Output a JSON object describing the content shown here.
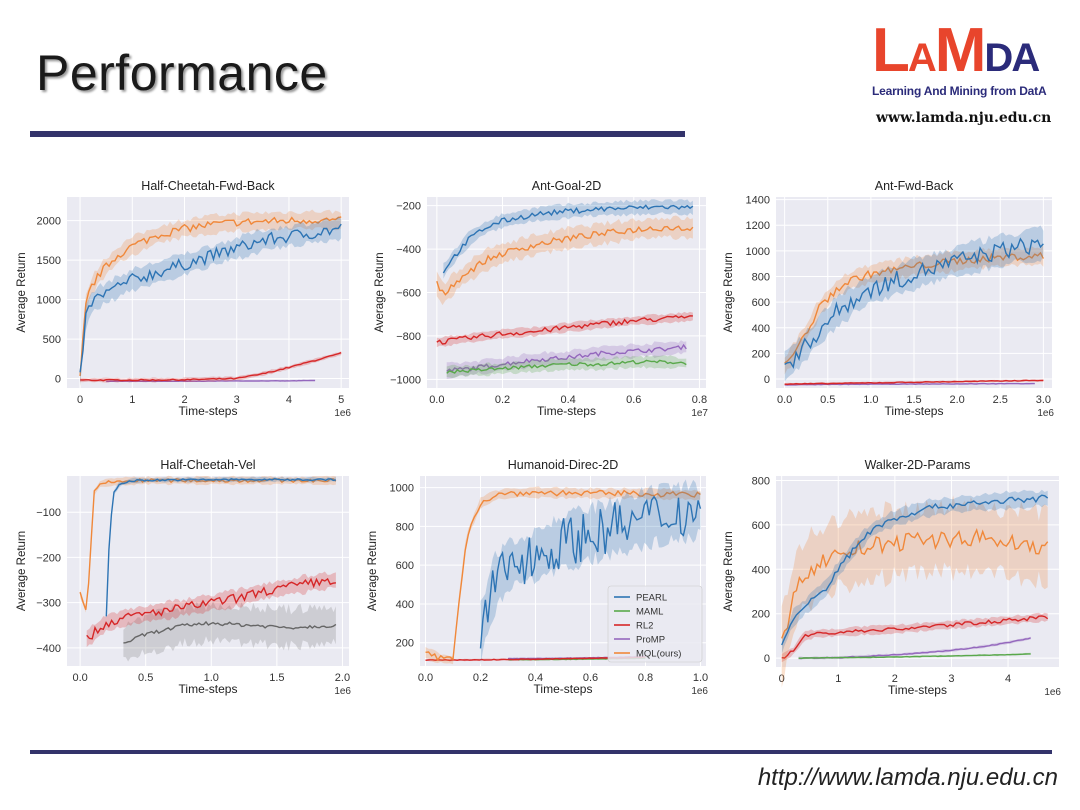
{
  "slide": {
    "title": "Performance",
    "logo_letters": [
      "L",
      "A",
      "M",
      "D",
      "A"
    ],
    "logo_subtitle": "Learning And Mining from DatA",
    "logo_url": "www.lamda.nju.edu.cn",
    "footer_url": "http://www.lamda.nju.edu.cn"
  },
  "colors": {
    "PEARL": "#2d74b4",
    "MAML": "#59a84b",
    "RL2": "#d62728",
    "ProMP": "#9467bd",
    "MQL(ours)": "#f0883a",
    "panel_bg": "#eaeaf2",
    "rule": "#33336b"
  },
  "chart_data": [
    {
      "type": "line",
      "title": "Half-Cheetah-Fwd-Back",
      "xlabel": "Time-steps",
      "ylabel": "Average Return",
      "x_multiplier": "1e6",
      "xlim": [
        -0.25,
        5.15
      ],
      "ylim": [
        -120,
        2300
      ],
      "xticks": [
        0,
        1,
        2,
        3,
        4,
        5
      ],
      "xtick_labels": [
        "0",
        "1",
        "2",
        "3",
        "4",
        "5"
      ],
      "yticks": [
        0,
        500,
        1000,
        1500,
        2000
      ],
      "ytick_labels": [
        "0",
        "500",
        "1000",
        "1500",
        "2000"
      ],
      "series": [
        {
          "name": "MQL(ours)",
          "x": [
            0,
            0.1,
            0.2,
            0.4,
            0.7,
            1.0,
            1.5,
            2.0,
            2.5,
            3.0,
            3.5,
            4.0,
            4.5,
            5.0
          ],
          "values": [
            0,
            900,
            1150,
            1350,
            1550,
            1680,
            1820,
            1900,
            1950,
            1980,
            1990,
            2000,
            2010,
            2000
          ],
          "band": 110,
          "noise": 50
        },
        {
          "name": "PEARL",
          "x": [
            0,
            0.1,
            0.2,
            0.4,
            0.7,
            1.0,
            1.5,
            2.0,
            2.5,
            3.0,
            3.5,
            4.0,
            4.5,
            5.0
          ],
          "values": [
            0,
            750,
            950,
            1050,
            1150,
            1250,
            1350,
            1450,
            1550,
            1650,
            1750,
            1800,
            1850,
            1900
          ],
          "band": 130,
          "noise": 80
        },
        {
          "name": "RL2",
          "x": [
            0,
            1,
            2,
            3,
            3.5,
            4,
            4.5,
            5
          ],
          "values": [
            -20,
            -20,
            -15,
            0,
            60,
            140,
            230,
            320
          ],
          "band": 25,
          "noise": 8
        },
        {
          "name": "ProMP",
          "x": [
            0.5,
            1,
            2,
            3,
            4,
            4.5
          ],
          "values": [
            -35,
            -35,
            -35,
            -30,
            -30,
            -25
          ],
          "band": 5,
          "noise": 2
        }
      ]
    },
    {
      "type": "line",
      "title": "Ant-Goal-2D",
      "xlabel": "Time-steps",
      "ylabel": "Average Return",
      "x_multiplier": "1e7",
      "xlim": [
        -0.03,
        0.82
      ],
      "ylim": [
        -1040,
        -160
      ],
      "xticks": [
        0,
        0.2,
        0.4,
        0.6,
        0.8
      ],
      "xtick_labels": [
        "0.0",
        "0.2",
        "0.4",
        "0.6",
        "0.8"
      ],
      "yticks": [
        -1000,
        -800,
        -600,
        -400,
        -200
      ],
      "ytick_labels": [
        "−1000",
        "−800",
        "−600",
        "−400",
        "−200"
      ],
      "series": [
        {
          "name": "PEARL",
          "x": [
            0.02,
            0.05,
            0.1,
            0.15,
            0.2,
            0.3,
            0.4,
            0.5,
            0.6,
            0.7,
            0.78
          ],
          "values": [
            -500,
            -440,
            -350,
            -300,
            -270,
            -240,
            -225,
            -215,
            -210,
            -205,
            -210
          ],
          "band": 30,
          "noise": 12
        },
        {
          "name": "MQL(ours)",
          "x": [
            0,
            0.02,
            0.05,
            0.1,
            0.15,
            0.2,
            0.3,
            0.4,
            0.5,
            0.6,
            0.7,
            0.78
          ],
          "values": [
            -560,
            -610,
            -560,
            -500,
            -450,
            -420,
            -380,
            -350,
            -330,
            -310,
            -300,
            -305
          ],
          "band": 45,
          "noise": 15
        },
        {
          "name": "RL2",
          "x": [
            0,
            0.1,
            0.2,
            0.3,
            0.4,
            0.5,
            0.6,
            0.7,
            0.78
          ],
          "values": [
            -830,
            -810,
            -790,
            -780,
            -760,
            -745,
            -730,
            -720,
            -710
          ],
          "band": 20,
          "noise": 12
        },
        {
          "name": "ProMP",
          "x": [
            0.03,
            0.1,
            0.2,
            0.3,
            0.4,
            0.5,
            0.6,
            0.7,
            0.76
          ],
          "values": [
            -960,
            -950,
            -930,
            -910,
            -900,
            -880,
            -870,
            -860,
            -850
          ],
          "band": 30,
          "noise": 10
        },
        {
          "name": "MAML",
          "x": [
            0.03,
            0.1,
            0.2,
            0.3,
            0.4,
            0.5,
            0.6,
            0.7,
            0.76
          ],
          "values": [
            -965,
            -960,
            -950,
            -940,
            -930,
            -930,
            -920,
            -920,
            -925
          ],
          "band": 25,
          "noise": 8
        }
      ]
    },
    {
      "type": "line",
      "title": "Ant-Fwd-Back",
      "xlabel": "Time-steps",
      "ylabel": "Average Return",
      "x_multiplier": "1e6",
      "xlim": [
        -0.1,
        3.1
      ],
      "ylim": [
        -70,
        1420
      ],
      "xticks": [
        0,
        0.5,
        1.0,
        1.5,
        2.0,
        2.5,
        3.0
      ],
      "xtick_labels": [
        "0.0",
        "0.5",
        "1.0",
        "1.5",
        "2.0",
        "2.5",
        "3.0"
      ],
      "yticks": [
        0,
        200,
        400,
        600,
        800,
        1000,
        1200,
        1400
      ],
      "ytick_labels": [
        "0",
        "200",
        "400",
        "600",
        "800",
        "1000",
        "1200",
        "1400"
      ],
      "series": [
        {
          "name": "MQL(ours)",
          "x": [
            0,
            0.2,
            0.4,
            0.6,
            0.8,
            1.0,
            1.5,
            2.0,
            2.5,
            3.0
          ],
          "values": [
            100,
            300,
            550,
            700,
            780,
            820,
            880,
            920,
            950,
            960
          ],
          "band": 70,
          "noise": 30
        },
        {
          "name": "PEARL",
          "x": [
            0,
            0.2,
            0.4,
            0.6,
            0.8,
            1.0,
            1.5,
            2.0,
            2.5,
            3.0
          ],
          "values": [
            100,
            220,
            380,
            520,
            620,
            700,
            820,
            920,
            1000,
            1060
          ],
          "band": 110,
          "noise": 70
        },
        {
          "name": "RL2",
          "x": [
            0,
            1,
            2,
            3
          ],
          "values": [
            -40,
            -30,
            -20,
            -10
          ],
          "band": 8,
          "noise": 3
        },
        {
          "name": "ProMP",
          "x": [
            0,
            1,
            2,
            2.9
          ],
          "values": [
            -45,
            -40,
            -38,
            -35
          ],
          "band": 5,
          "noise": 2
        }
      ]
    },
    {
      "type": "line",
      "title": "Half-Cheetah-Vel",
      "xlabel": "Time-steps",
      "ylabel": "Average Return",
      "x_multiplier": "1e6",
      "xlim": [
        -0.1,
        2.05
      ],
      "ylim": [
        -440,
        -20
      ],
      "xticks": [
        0,
        0.5,
        1.0,
        1.5,
        2.0
      ],
      "xtick_labels": [
        "0.0",
        "0.5",
        "1.0",
        "1.5",
        "2.0"
      ],
      "yticks": [
        -400,
        -300,
        -200,
        -100
      ],
      "ytick_labels": [
        "−400",
        "−300",
        "−200",
        "−100"
      ],
      "series": [
        {
          "name": "MQL(ours)",
          "x": [
            0,
            0.05,
            0.08,
            0.1,
            0.15,
            0.2,
            0.3,
            0.5,
            1.0,
            1.5,
            1.95
          ],
          "values": [
            -280,
            -320,
            -200,
            -60,
            -38,
            -35,
            -32,
            -30,
            -30,
            -30,
            -30
          ],
          "band": 8,
          "noise": 4
        },
        {
          "name": "PEARL",
          "x": [
            0.2,
            0.22,
            0.25,
            0.3,
            0.4,
            0.6,
            1.0,
            1.5,
            1.95
          ],
          "values": [
            -330,
            -180,
            -60,
            -38,
            -30,
            -29,
            -28,
            -28,
            -28
          ],
          "band": 5,
          "noise": 2
        },
        {
          "name": "RL2",
          "x": [
            0.05,
            0.2,
            0.4,
            0.6,
            0.8,
            1.0,
            1.2,
            1.4,
            1.6,
            1.8,
            1.95
          ],
          "values": [
            -380,
            -345,
            -330,
            -320,
            -310,
            -300,
            -290,
            -275,
            -265,
            -255,
            -250
          ],
          "band": 18,
          "noise": 10
        },
        {
          "name": "ProMP",
          "x": [
            0.33,
            0.5,
            0.8,
            1.0,
            1.3,
            1.6,
            1.95
          ],
          "values": [
            -390,
            -370,
            -350,
            -345,
            -350,
            -355,
            -350
          ],
          "band": 40,
          "noise": 4
        }
      ]
    },
    {
      "type": "line",
      "title": "Humanoid-Direc-2D",
      "xlabel": "Time-steps",
      "ylabel": "Average Return",
      "x_multiplier": "1e6",
      "xlim": [
        -0.02,
        1.02
      ],
      "ylim": [
        80,
        1060
      ],
      "xticks": [
        0,
        0.2,
        0.4,
        0.6,
        0.8,
        1.0
      ],
      "xtick_labels": [
        "0.0",
        "0.2",
        "0.4",
        "0.6",
        "0.8",
        "1.0"
      ],
      "yticks": [
        200,
        400,
        600,
        800,
        1000
      ],
      "ytick_labels": [
        "200",
        "400",
        "600",
        "800",
        "1000"
      ],
      "legend_position": "lower-right",
      "legend": [
        "PEARL",
        "MAML",
        "RL2",
        "ProMP",
        "MQL(ours)"
      ],
      "series": [
        {
          "name": "MQL(ours)",
          "x": [
            0,
            0.05,
            0.1,
            0.12,
            0.15,
            0.2,
            0.25,
            0.3,
            0.4,
            0.6,
            0.8,
            1.0
          ],
          "values": [
            150,
            120,
            110,
            400,
            750,
            920,
            960,
            970,
            975,
            970,
            970,
            960
          ],
          "band": 25,
          "noise": 15
        },
        {
          "name": "PEARL",
          "x": [
            0.2,
            0.25,
            0.3,
            0.4,
            0.5,
            0.6,
            0.7,
            0.8,
            0.9,
            1.0
          ],
          "values": [
            250,
            500,
            600,
            650,
            720,
            760,
            800,
            840,
            870,
            880
          ],
          "band": 130,
          "noise": 130
        },
        {
          "name": "RL2",
          "x": [
            0,
            0.2,
            0.4,
            0.6,
            0.8
          ],
          "values": [
            110,
            112,
            115,
            120,
            125
          ],
          "band": 5,
          "noise": 2
        },
        {
          "name": "ProMP",
          "x": [
            0.3,
            0.5,
            0.7,
            0.8
          ],
          "values": [
            118,
            120,
            125,
            130
          ],
          "band": 4,
          "noise": 1
        },
        {
          "name": "MAML",
          "x": [
            0.3,
            0.5,
            0.7,
            0.8
          ],
          "values": [
            112,
            114,
            118,
            120
          ],
          "band": 4,
          "noise": 1
        }
      ]
    },
    {
      "type": "line",
      "title": "Walker-2D-Params",
      "xlabel": "Time-steps",
      "ylabel": "Average Return",
      "x_multiplier": "1e6",
      "xlim": [
        -0.1,
        4.9
      ],
      "ylim": [
        -40,
        820
      ],
      "xticks": [
        0,
        1,
        2,
        3,
        4
      ],
      "xtick_labels": [
        "0",
        "1",
        "2",
        "3",
        "4"
      ],
      "yticks": [
        0,
        200,
        400,
        600,
        800
      ],
      "ytick_labels": [
        "0",
        "200",
        "400",
        "600",
        "800"
      ],
      "series": [
        {
          "name": "MQL(ours)",
          "x": [
            0,
            0.1,
            0.3,
            0.6,
            1.0,
            1.5,
            2.0,
            2.5,
            3.0,
            3.5,
            4.0,
            4.7
          ],
          "values": [
            50,
            150,
            350,
            420,
            470,
            500,
            520,
            530,
            540,
            540,
            520,
            500
          ],
          "band": 150,
          "noise": 40
        },
        {
          "name": "PEARL",
          "x": [
            0,
            0.2,
            0.5,
            0.8,
            1.0,
            1.3,
            1.6,
            2.0,
            2.5,
            3.0,
            3.5,
            4.0,
            4.7
          ],
          "values": [
            50,
            180,
            250,
            320,
            400,
            500,
            580,
            630,
            670,
            690,
            700,
            710,
            720
          ],
          "band": 35,
          "noise": 15
        },
        {
          "name": "RL2",
          "x": [
            0,
            0.2,
            0.4,
            0.6,
            1.0,
            1.5,
            2.0,
            2.5,
            3.0,
            3.5,
            4.0,
            4.7
          ],
          "values": [
            0,
            30,
            100,
            110,
            115,
            125,
            130,
            140,
            150,
            160,
            170,
            185
          ],
          "band": 18,
          "noise": 8
        },
        {
          "name": "ProMP",
          "x": [
            0.3,
            1.0,
            2.0,
            3.0,
            3.5,
            4.0,
            4.4
          ],
          "values": [
            0,
            2,
            15,
            35,
            50,
            70,
            90
          ],
          "band": 6,
          "noise": 2
        },
        {
          "name": "MAML",
          "x": [
            0.3,
            1.0,
            2.0,
            3.0,
            4.0,
            4.4
          ],
          "values": [
            0,
            2,
            5,
            10,
            15,
            20
          ],
          "band": 4,
          "noise": 1
        }
      ]
    }
  ]
}
